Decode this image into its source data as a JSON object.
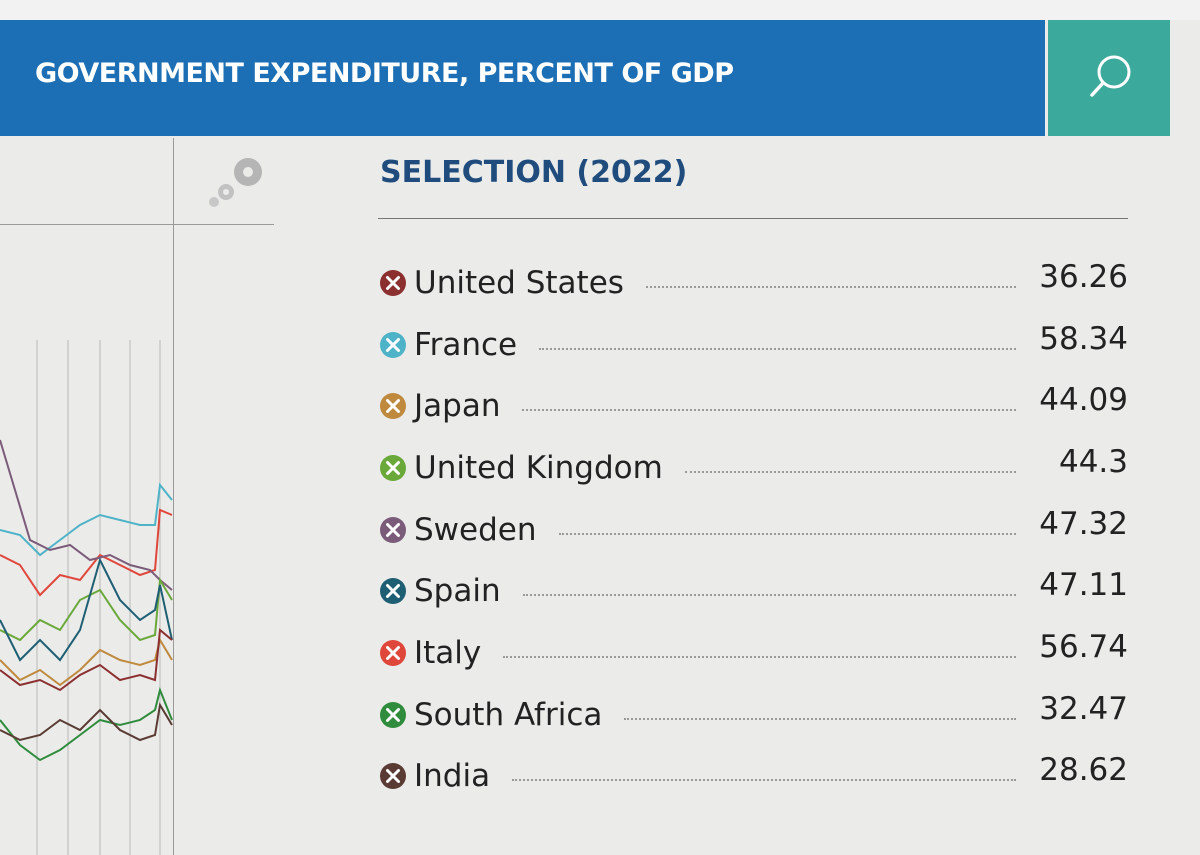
{
  "header": {
    "title": "GOVERNMENT EXPENDITURE, PERCENT OF GDP"
  },
  "selection": {
    "title": "SELECTION (2022)",
    "items": [
      {
        "name": "United States",
        "value": 36.26,
        "color": "#8b2f2f"
      },
      {
        "name": "France",
        "value": 58.34,
        "color": "#4fb3c8"
      },
      {
        "name": "Japan",
        "value": 44.09,
        "color": "#c08a3e"
      },
      {
        "name": "United Kingdom",
        "value": 44.3,
        "color": "#6aa83a"
      },
      {
        "name": "Sweden",
        "value": 47.32,
        "color": "#7b5b7a"
      },
      {
        "name": "Spain",
        "value": 47.11,
        "color": "#1f5f73"
      },
      {
        "name": "Italy",
        "value": 56.74,
        "color": "#e0473b"
      },
      {
        "name": "South Africa",
        "value": 32.47,
        "color": "#2f8c3c"
      },
      {
        "name": "India",
        "value": 28.62,
        "color": "#5a3b34"
      }
    ]
  }
}
